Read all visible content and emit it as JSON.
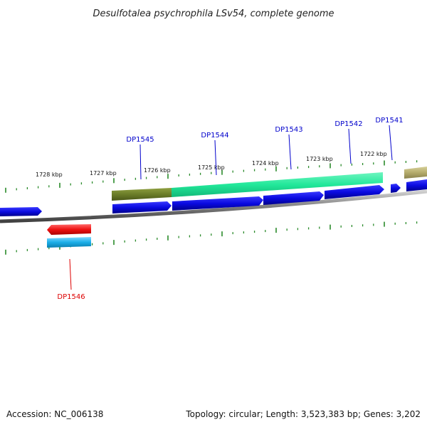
{
  "title": "Desulfotalea psychrophila LSv54, complete genome",
  "footer": {
    "accession": "Accession: NC_006138",
    "summary": "Topology: circular; Length: 3,523,383 bp; Genes: 3,202"
  },
  "scale_labels": [
    "1728 kbp",
    "1727 kbp",
    "1726 kbp",
    "1725 kbp",
    "1724 kbp",
    "1723 kbp",
    "1722 kbp"
  ],
  "gene_labels": [
    "DP1545",
    "DP1544",
    "DP1543",
    "DP1542",
    "DP1541",
    "DP1546"
  ],
  "colors": {
    "forward_gene": "#0a0ae0",
    "reverse_gene": "#ee1111",
    "cog_olive": "#6b7d28",
    "cog_teal": "#22e89a",
    "cog_tan": "#b5ac6c",
    "cog_cyan": "#1aaee8",
    "backbone": "#808080",
    "ticks": "#2a8a2a",
    "label_forward": "#0000cc",
    "label_reverse": "#dd0000"
  }
}
